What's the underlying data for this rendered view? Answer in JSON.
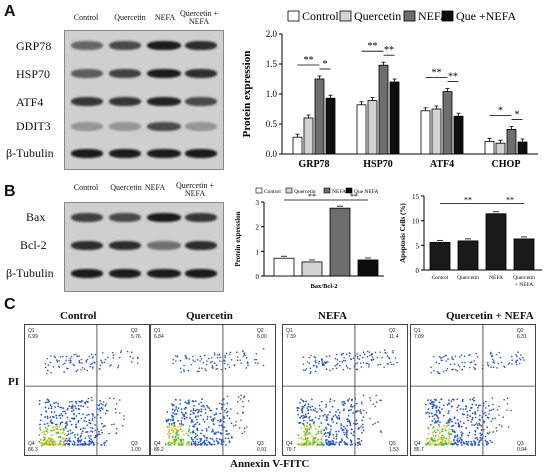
{
  "panels": {
    "a": "A",
    "b": "B",
    "c": "C"
  },
  "lanes_a": [
    "Control",
    "Quercetin",
    "NEFA",
    "Quercetin + NEFA"
  ],
  "rows_a": [
    "GRP78",
    "HSP70",
    "ATF4",
    "DDIT3",
    "β-Tubulin"
  ],
  "lanes_b": [
    "Control",
    "Quercetin",
    "NEFA",
    "Quercetin + NEFA"
  ],
  "rows_b": [
    "Bax",
    "Bcl-2",
    "β-Tubulin"
  ],
  "colors": {
    "control": "#ffffff",
    "quercetin": "#d3d3d3",
    "nefa": "#6e6e6e",
    "que_nefa": "#0d0d0d"
  },
  "chart_data": [
    {
      "type": "bar",
      "ylabel": "Protein expression",
      "ylim": [
        0,
        2.0
      ],
      "yticks": [
        "0.0",
        "0.5",
        "1.0",
        "1.5",
        "2.0"
      ],
      "legend": [
        "Control",
        "Quercetin",
        "NEFA",
        "Que +NEFA"
      ],
      "categories": [
        "GRP78",
        "HSP70",
        "ATF4",
        "CHOP"
      ],
      "series": [
        {
          "name": "Control",
          "values": [
            0.28,
            0.82,
            0.72,
            0.21
          ]
        },
        {
          "name": "Quercetin",
          "values": [
            0.6,
            0.89,
            0.75,
            0.18
          ]
        },
        {
          "name": "NEFA",
          "values": [
            1.25,
            1.48,
            1.04,
            0.41
          ]
        },
        {
          "name": "Que +NEFA",
          "values": [
            0.93,
            1.2,
            0.63,
            0.2
          ]
        }
      ],
      "sig": [
        "**",
        "*",
        "**",
        "**",
        "**",
        "**",
        "*",
        "*"
      ]
    },
    {
      "type": "bar",
      "ylabel": "Protein expression",
      "xlabel": "Bax/Bcl-2",
      "ylim": [
        0,
        3
      ],
      "yticks": [
        "0",
        "1",
        "2",
        "3"
      ],
      "legend": [
        "Control",
        "Quercetin",
        "NEFA",
        "Que NEFA"
      ],
      "categories": [
        "Bax/Bcl-2"
      ],
      "series": [
        {
          "name": "Control",
          "values": [
            0.72
          ]
        },
        {
          "name": "Quercetin",
          "values": [
            0.57
          ]
        },
        {
          "name": "NEFA",
          "values": [
            2.75
          ]
        },
        {
          "name": "Que NEFA",
          "values": [
            0.65
          ]
        }
      ],
      "sig": [
        "**",
        "**"
      ]
    },
    {
      "type": "bar",
      "ylabel": "Apoptosis Cells (%)",
      "ylim": [
        0,
        15
      ],
      "yticks": [
        "0",
        "5",
        "10",
        "15"
      ],
      "categories": [
        "Control",
        "Quercetin",
        "NEFA",
        "Quercetin + NEFA"
      ],
      "values": [
        5.6,
        5.9,
        11.4,
        6.3
      ],
      "sig": [
        "**",
        "**"
      ]
    }
  ],
  "flow": {
    "ylabel": "PI",
    "xlabel": "Annexin V-FITC",
    "plots": [
      {
        "title": "Control",
        "q1": [
          "Q1",
          "6.99"
        ],
        "q2": [
          "Q2",
          "5.76"
        ],
        "q3": [
          "Q3",
          "1.00"
        ],
        "q4": [
          "Q4",
          "86.3"
        ]
      },
      {
        "title": "Quercetin",
        "q1": [
          "Q1",
          "6.84"
        ],
        "q2": [
          "Q2",
          "6.00"
        ],
        "q3": [
          "Q3",
          "0.91"
        ],
        "q4": [
          "Q4",
          "86.2"
        ]
      },
      {
        "title": "NEFA",
        "q1": [
          "Q1",
          "7.39"
        ],
        "q2": [
          "Q2",
          "11.4"
        ],
        "q3": [
          "Q3",
          "1.53"
        ],
        "q4": [
          "Q4",
          "79.7"
        ]
      },
      {
        "title": "Quercetin + NEFA",
        "q1": [
          "Q1",
          "7.09"
        ],
        "q2": [
          "Q2",
          "6.31"
        ],
        "q3": [
          "Q3",
          "0.94"
        ],
        "q4": [
          "Q4",
          "85.7"
        ]
      }
    ]
  }
}
